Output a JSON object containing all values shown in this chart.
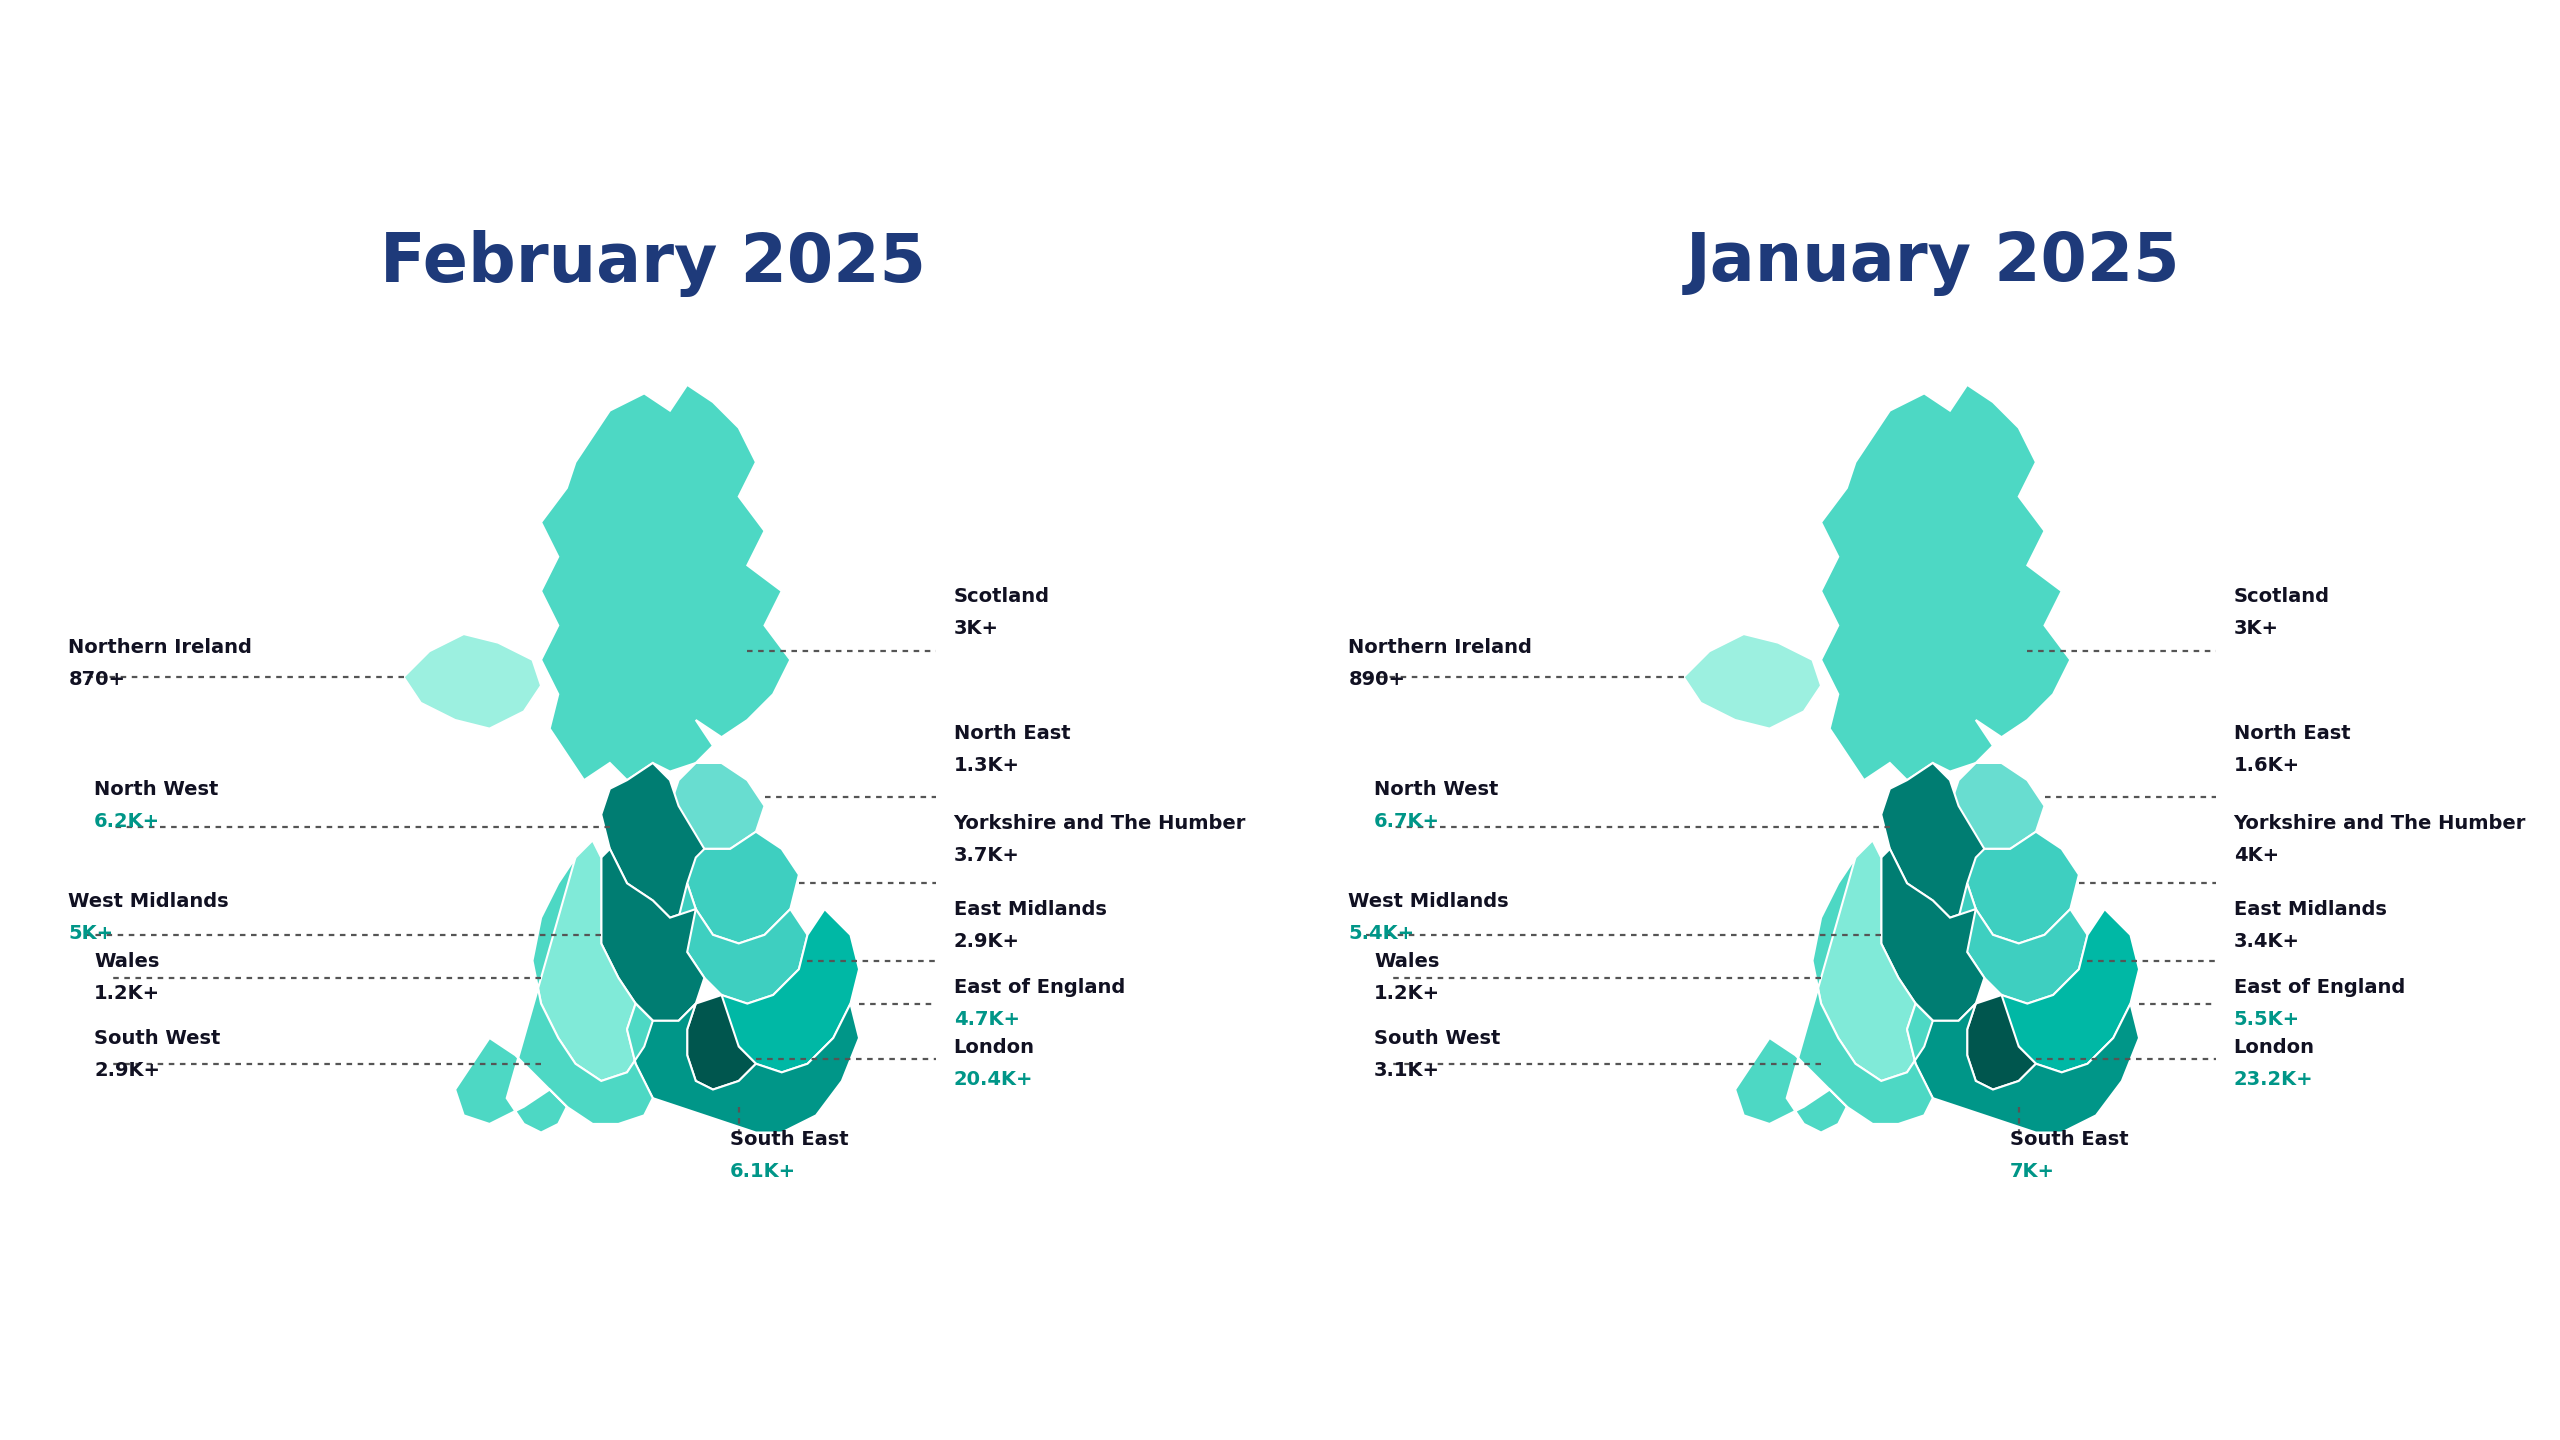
{
  "title_feb": "February 2025",
  "title_jan": "January 2025",
  "title_color": "#1e3a7a",
  "background_color": "#ffffff",
  "feb_regions": {
    "Scotland": {
      "value": "3K+",
      "highlight": false
    },
    "North East": {
      "value": "1.3K+",
      "highlight": false
    },
    "North West": {
      "value": "6.2K+",
      "highlight": true
    },
    "Yorkshire and The Humber": {
      "value": "3.7K+",
      "highlight": false
    },
    "East Midlands": {
      "value": "2.9K+",
      "highlight": false
    },
    "West Midlands": {
      "value": "5K+",
      "highlight": true
    },
    "East of England": {
      "value": "4.7K+",
      "highlight": true
    },
    "London": {
      "value": "20.4K+",
      "highlight": true
    },
    "South East": {
      "value": "6.1K+",
      "highlight": true
    },
    "South West": {
      "value": "2.9K+",
      "highlight": false
    },
    "Wales": {
      "value": "1.2K+",
      "highlight": false
    },
    "Northern Ireland": {
      "value": "870+",
      "highlight": false
    }
  },
  "jan_regions": {
    "Scotland": {
      "value": "3K+",
      "highlight": false
    },
    "North East": {
      "value": "1.6K+",
      "highlight": false
    },
    "North West": {
      "value": "6.7K+",
      "highlight": true
    },
    "Yorkshire and The Humber": {
      "value": "4K+",
      "highlight": false
    },
    "East Midlands": {
      "value": "3.4K+",
      "highlight": false
    },
    "West Midlands": {
      "value": "5.4K+",
      "highlight": true
    },
    "East of England": {
      "value": "5.5K+",
      "highlight": true
    },
    "London": {
      "value": "23.2K+",
      "highlight": true
    },
    "South East": {
      "value": "7K+",
      "highlight": true
    },
    "South West": {
      "value": "3.1K+",
      "highlight": false
    },
    "Wales": {
      "value": "1.2K+",
      "highlight": false
    },
    "Northern Ireland": {
      "value": "890+",
      "highlight": false
    }
  },
  "region_colors": {
    "Scotland": "#4dd8c4",
    "North East": "#68ddd0",
    "North West": "#007d72",
    "Yorkshire and The Humber": "#3ecfc0",
    "East Midlands": "#3ecfc0",
    "West Midlands": "#007d72",
    "East of England": "#00b8a5",
    "London": "#00564e",
    "South East": "#009688",
    "South West": "#4dd8c4",
    "Wales": "#80ead8",
    "Northern Ireland": "#9cf0e0"
  },
  "text_color_dark": "#111122",
  "text_color_teal": "#009688",
  "title_fontsize": 48,
  "label_fontsize": 14
}
